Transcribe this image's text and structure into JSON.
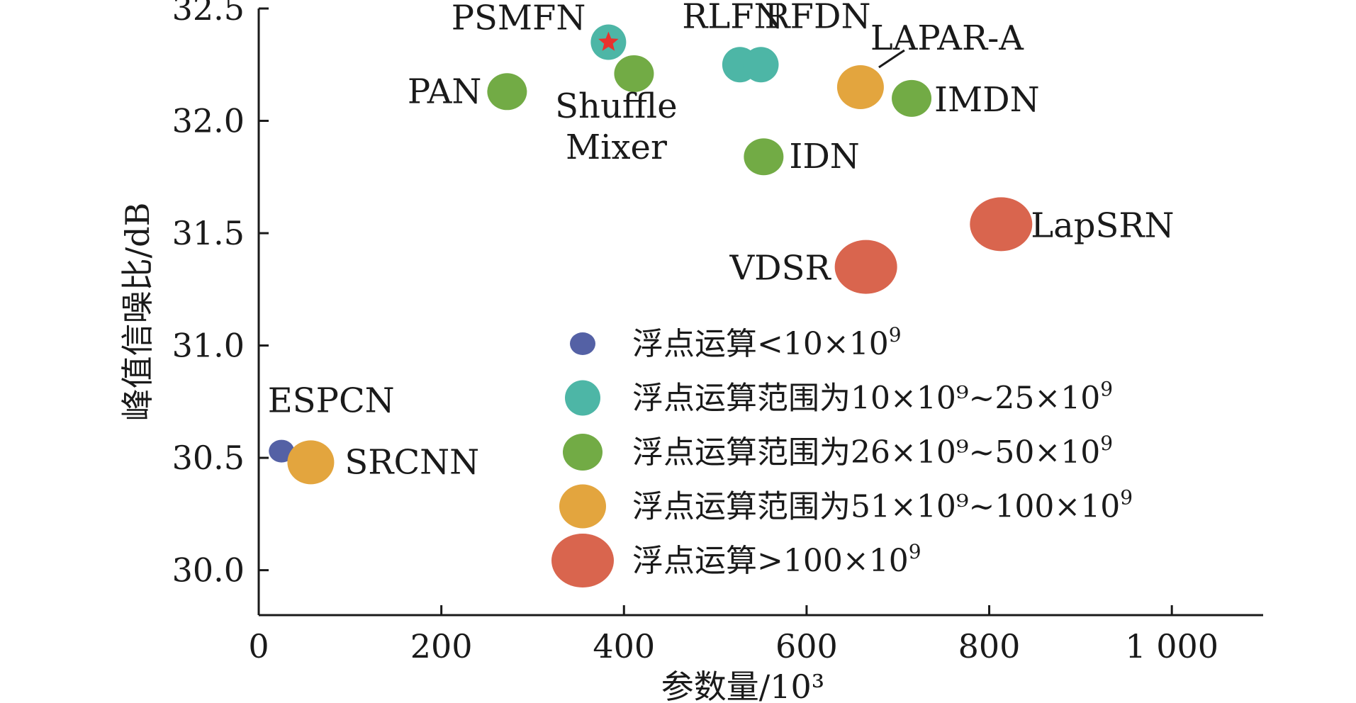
{
  "chart_data": {
    "type": "scatter",
    "xlabel": "参数量/10³",
    "ylabel": "峰值信噪比/dB",
    "xlim": [
      0,
      1100
    ],
    "ylim": [
      29.8,
      32.5
    ],
    "xticks": [
      0,
      200,
      400,
      600,
      800,
      1000
    ],
    "xtick_labels": [
      "0",
      "200",
      "400",
      "600",
      "800",
      "1 000"
    ],
    "yticks": [
      30.0,
      30.5,
      31.0,
      31.5,
      32.0,
      32.5
    ],
    "ytick_labels": [
      "30.0",
      "30.5",
      "31.0",
      "31.5",
      "32.0",
      "32.5"
    ],
    "grid": false,
    "legend_position": "center-right",
    "categories": [
      {
        "key": "c1",
        "label": "浮点运算<10×10",
        "sup": "9",
        "color": "#5461a5",
        "size": 1
      },
      {
        "key": "c2",
        "label": "浮点运算范围为10×10⁹~25×10",
        "sup": "9",
        "color": "#4db6a6",
        "size": 2
      },
      {
        "key": "c3",
        "label": "浮点运算范围为26×10⁹~50×10",
        "sup": "9",
        "color": "#72ab45",
        "size": 3
      },
      {
        "key": "c4",
        "label": "浮点运算范围为51×10⁹~100×10",
        "sup": "9",
        "color": "#e3a53e",
        "size": 4
      },
      {
        "key": "c5",
        "label": "浮点运算>100×10",
        "sup": "9",
        "color": "#d9654e",
        "size": 5
      }
    ],
    "points": [
      {
        "name": "ESPCN",
        "x": 25,
        "y": 30.53,
        "cat": "c1"
      },
      {
        "name": "SRCNN",
        "x": 57,
        "y": 30.48,
        "cat": "c4"
      },
      {
        "name": "PAN",
        "x": 272,
        "y": 32.13,
        "cat": "c3"
      },
      {
        "name": "PSMFN",
        "x": 383,
        "y": 32.35,
        "cat": "c2",
        "star": true
      },
      {
        "name": "Shuffle Mixer",
        "x": 411,
        "y": 32.21,
        "cat": "c3"
      },
      {
        "name": "RLFN",
        "x": 527,
        "y": 32.25,
        "cat": "c2"
      },
      {
        "name": "RFDN",
        "x": 550,
        "y": 32.25,
        "cat": "c2"
      },
      {
        "name": "IDN",
        "x": 553,
        "y": 31.84,
        "cat": "c3"
      },
      {
        "name": "LAPAR-A",
        "x": 659,
        "y": 32.15,
        "cat": "c4"
      },
      {
        "name": "IMDN",
        "x": 715,
        "y": 32.1,
        "cat": "c3"
      },
      {
        "name": "VDSR",
        "x": 665,
        "y": 31.35,
        "cat": "c5"
      },
      {
        "name": "LapSRN",
        "x": 813,
        "y": 31.54,
        "cat": "c5"
      }
    ]
  }
}
